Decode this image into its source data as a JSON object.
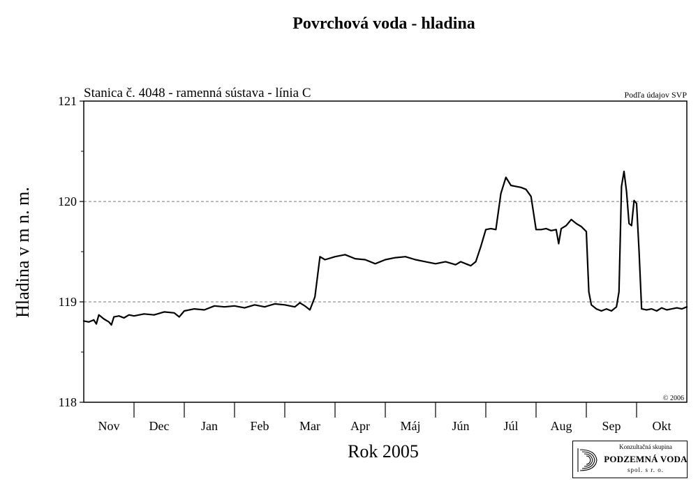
{
  "chart_data": {
    "type": "line",
    "title": "Povrchová voda - hladina",
    "subtitle": "Stanica č. 4048 - ramenná sústava - línia C",
    "source": "Podľa údajov SVP",
    "copyright": "© 2006",
    "xlabel": "Rok 2005",
    "ylabel": "Hladina v m n. m.",
    "x_categories": [
      "Nov",
      "Dec",
      "Jan",
      "Feb",
      "Mar",
      "Apr",
      "Máj",
      "Jún",
      "Júl",
      "Aug",
      "Sep",
      "Okt"
    ],
    "xlim": [
      0,
      12
    ],
    "ylim": [
      118,
      121
    ],
    "yticks": [
      118,
      119,
      120,
      121
    ],
    "grid": "dashed at 119 and 120",
    "series": [
      {
        "x": [
          0.0,
          0.1,
          0.2,
          0.25,
          0.3,
          0.4,
          0.5,
          0.55,
          0.6,
          0.7,
          0.8,
          0.9,
          1.0,
          1.2,
          1.4,
          1.6,
          1.8,
          1.9,
          2.0,
          2.2,
          2.4,
          2.6,
          2.8,
          3.0,
          3.2,
          3.4,
          3.6,
          3.8,
          4.0,
          4.2,
          4.3,
          4.4,
          4.5,
          4.6,
          4.7,
          4.8,
          5.0,
          5.2,
          5.4,
          5.6,
          5.8,
          6.0,
          6.2,
          6.4,
          6.6,
          6.8,
          7.0,
          7.2,
          7.4,
          7.5,
          7.6,
          7.7,
          7.8,
          7.9,
          8.0,
          8.1,
          8.2,
          8.3,
          8.4,
          8.5,
          8.6,
          8.7,
          8.8,
          8.9,
          9.0,
          9.1,
          9.2,
          9.3,
          9.4,
          9.45,
          9.5,
          9.6,
          9.7,
          9.8,
          9.9,
          10.0,
          10.05,
          10.1,
          10.2,
          10.3,
          10.4,
          10.5,
          10.6,
          10.65,
          10.7,
          10.75,
          10.8,
          10.85,
          10.9,
          10.95,
          11.0,
          11.05,
          11.1,
          11.2,
          11.3,
          11.4,
          11.5,
          11.6,
          11.7,
          11.8,
          11.9,
          12.0
        ],
        "y": [
          118.81,
          118.8,
          118.82,
          118.78,
          118.87,
          118.83,
          118.8,
          118.77,
          118.85,
          118.86,
          118.84,
          118.87,
          118.86,
          118.88,
          118.87,
          118.9,
          118.89,
          118.85,
          118.91,
          118.93,
          118.92,
          118.96,
          118.95,
          118.96,
          118.94,
          118.97,
          118.95,
          118.98,
          118.97,
          118.95,
          118.99,
          118.96,
          118.92,
          119.05,
          119.45,
          119.42,
          119.45,
          119.47,
          119.43,
          119.42,
          119.38,
          119.42,
          119.44,
          119.45,
          119.42,
          119.4,
          119.38,
          119.4,
          119.37,
          119.4,
          119.38,
          119.36,
          119.4,
          119.55,
          119.72,
          119.73,
          119.72,
          120.08,
          120.24,
          120.16,
          120.15,
          120.14,
          120.12,
          120.05,
          119.72,
          119.72,
          119.73,
          119.71,
          119.72,
          119.58,
          119.73,
          119.76,
          119.82,
          119.78,
          119.75,
          119.7,
          119.1,
          118.97,
          118.93,
          118.91,
          118.93,
          118.91,
          118.95,
          119.1,
          120.15,
          120.3,
          120.1,
          119.78,
          119.76,
          120.01,
          119.98,
          119.5,
          118.93,
          118.92,
          118.93,
          118.91,
          118.94,
          118.92,
          118.93,
          118.94,
          118.93,
          118.95
        ]
      }
    ]
  },
  "logo": {
    "top": "Konzultačná skupina",
    "main": "PODZEMNÁ VODA",
    "bottom": "spol. s r. o."
  }
}
